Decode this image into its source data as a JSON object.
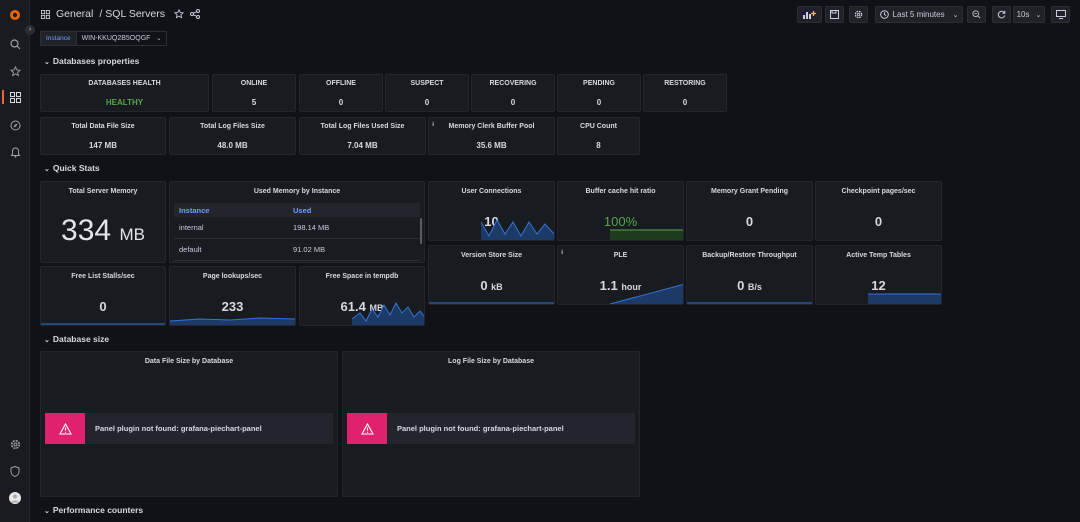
{
  "breadcrumb": {
    "folder": "General",
    "separator": "/",
    "dashboard": "SQL Servers"
  },
  "toolbar": {
    "time_range": "Last 5 minutes",
    "refresh_interval": "10s"
  },
  "variables": {
    "instance_label": "Instance",
    "instance_value": "WIN-KKUQ2B5OQGF"
  },
  "rows": {
    "databases_properties": "Databases properties",
    "quick_stats": "Quick Stats",
    "database_size": "Database size",
    "performance_counters": "Performance counters"
  },
  "health": {
    "databases_health": {
      "title": "DATABASES HEALTH",
      "value": "HEALTHY"
    },
    "online": {
      "title": "ONLINE",
      "value": "5"
    },
    "offline": {
      "title": "OFFLINE",
      "value": "0"
    },
    "suspect": {
      "title": "SUSPECT",
      "value": "0"
    },
    "recovering": {
      "title": "RECOVERING",
      "value": "0"
    },
    "pending": {
      "title": "PENDING",
      "value": "0"
    },
    "restoring": {
      "title": "RESTORING",
      "value": "0"
    }
  },
  "sizes": {
    "total_data_file": {
      "title": "Total Data File Size",
      "value": "147 MB"
    },
    "total_log_files": {
      "title": "Total Log Files Size",
      "value": "48.0 MB"
    },
    "total_log_used": {
      "title": "Total Log Files Used Size",
      "value": "7.04 MB"
    },
    "memory_clerk": {
      "title": "Memory Clerk Buffer Pool",
      "value": "35.6 MB"
    },
    "cpu_count": {
      "title": "CPU Count",
      "value": "8"
    }
  },
  "quick": {
    "total_server_memory": {
      "title": "Total Server Memory",
      "value": "334",
      "unit": "MB"
    },
    "used_memory": {
      "title": "Used Memory by Instance",
      "col_instance": "Instance",
      "col_used": "Used",
      "rows": [
        {
          "instance": "internal",
          "used": "198.14 MB"
        },
        {
          "instance": "default",
          "used": "91.02 MB"
        }
      ]
    },
    "free_list_stalls": {
      "title": "Free List Stalls/sec",
      "value": "0"
    },
    "page_lookups": {
      "title": "Page lookups/sec",
      "value": "233"
    },
    "free_space_tempdb": {
      "title": "Free Space in tempdb",
      "value": "61.4",
      "unit": "MB"
    },
    "user_connections": {
      "title": "User Connections",
      "value": "10"
    },
    "buffer_cache_hit": {
      "title": "Buffer cache hit ratio",
      "value": "100%"
    },
    "memory_grant_pending": {
      "title": "Memory Grant Pending",
      "value": "0"
    },
    "checkpoint_pages": {
      "title": "Checkpoint pages/sec",
      "value": "0"
    },
    "version_store": {
      "title": "Version Store Size",
      "value": "0",
      "unit": "kB"
    },
    "ple": {
      "title": "PLE",
      "value": "1.1",
      "unit": "hour"
    },
    "backup_restore": {
      "title": "Backup/Restore Throughput",
      "value": "0",
      "unit": "B/s"
    },
    "active_temp_tables": {
      "title": "Active Temp Tables",
      "value": "12"
    }
  },
  "dbsize": {
    "data_file": {
      "title": "Data File Size by Database",
      "error": "Panel plugin not found: grafana-piechart-panel"
    },
    "log_file": {
      "title": "Log File Size by Database",
      "error": "Panel plugin not found: grafana-piechart-panel"
    }
  },
  "colors": {
    "accent": "#6e9fff",
    "healthy": "#56a64b",
    "error": "#e0226e",
    "spark": "#3274d9"
  }
}
